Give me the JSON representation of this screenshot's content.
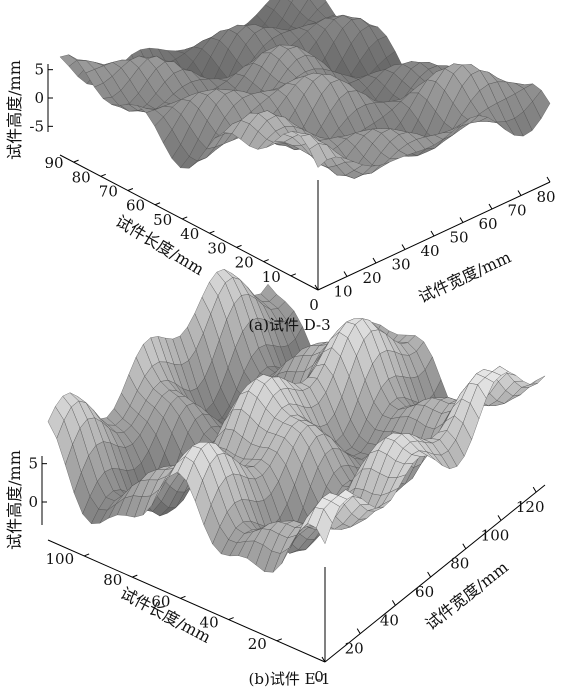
{
  "chart_data": [
    {
      "type": "surface",
      "caption": "(a)试件 D-3",
      "zlabel": "试件高度/mm",
      "xlabel": "试件长度/mm",
      "ylabel": "试件宽度/mm",
      "z_ticks": [
        "5",
        "0",
        "-5"
      ],
      "x_ticks": [
        "10",
        "20",
        "30",
        "40",
        "50",
        "60",
        "70",
        "80",
        "90"
      ],
      "y_ticks": [
        "0",
        "10",
        "20",
        "30",
        "40",
        "50",
        "60",
        "70",
        "80"
      ],
      "xlim": [
        0,
        95
      ],
      "ylim": [
        0,
        80
      ],
      "zlim": [
        -6,
        6
      ],
      "grid": false,
      "legend": "none"
    },
    {
      "type": "surface",
      "caption": "(b)试件 E-1",
      "zlabel": "试件高度/mm",
      "xlabel": "试件长度/mm",
      "ylabel": "试件宽度/mm",
      "z_ticks": [
        "5",
        "0"
      ],
      "x_ticks": [
        "20",
        "40",
        "60",
        "80",
        "100"
      ],
      "y_ticks": [
        "0",
        "20",
        "40",
        "60",
        "80",
        "100",
        "120"
      ],
      "xlim": [
        0,
        115
      ],
      "ylim": [
        0,
        125
      ],
      "zlim": [
        -3,
        6
      ],
      "grid": false,
      "legend": "none"
    }
  ]
}
